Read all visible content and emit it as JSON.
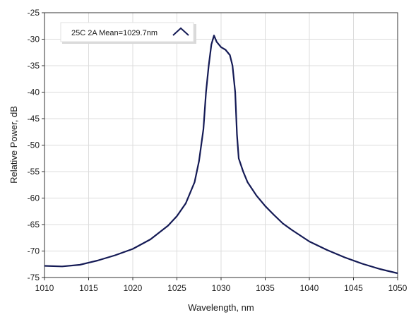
{
  "chart_data": {
    "type": "line",
    "xlabel": "Wavelength, nm",
    "ylabel": "Relative Power, dB",
    "xlim": [
      1010,
      1050
    ],
    "ylim": [
      -75,
      -25
    ],
    "xticks": [
      1010,
      1015,
      1020,
      1025,
      1030,
      1035,
      1040,
      1045,
      1050
    ],
    "yticks": [
      -25,
      -30,
      -35,
      -40,
      -45,
      -50,
      -55,
      -60,
      -65,
      -70,
      -75
    ],
    "grid": true,
    "legend_position": "top-left",
    "line_color": "#141a55",
    "series": [
      {
        "name": "25C 2A Mean=1029.7nm",
        "x": [
          1010,
          1012,
          1014,
          1016,
          1018,
          1020,
          1022,
          1024,
          1025,
          1026,
          1027,
          1027.5,
          1028,
          1028.3,
          1028.6,
          1028.9,
          1029.2,
          1029.5,
          1030,
          1030.5,
          1031,
          1031.3,
          1031.6,
          1031.8,
          1032,
          1032.5,
          1033,
          1034,
          1035,
          1036,
          1037,
          1038,
          1040,
          1042,
          1044,
          1046,
          1048,
          1050
        ],
        "y": [
          -72.8,
          -72.9,
          -72.6,
          -71.8,
          -70.8,
          -69.6,
          -67.8,
          -65.2,
          -63.4,
          -61,
          -57,
          -53,
          -47,
          -40,
          -35,
          -31,
          -29.3,
          -30.5,
          -31.5,
          -32,
          -33,
          -35,
          -40,
          -48,
          -52.5,
          -55,
          -57,
          -59.5,
          -61.5,
          -63.2,
          -64.8,
          -66,
          -68.2,
          -69.8,
          -71.2,
          -72.4,
          -73.4,
          -74.2
        ]
      }
    ]
  }
}
